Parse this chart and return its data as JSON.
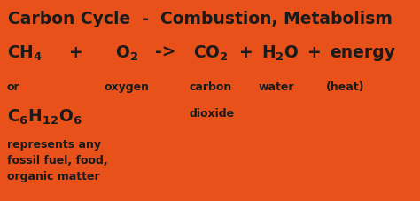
{
  "background_color": "#E8511A",
  "title": "Carbon Cycle  -  Combustion, Metabolism",
  "text_color": "#1a1a1a",
  "fig_width": 4.74,
  "fig_height": 2.27,
  "dpi": 100,
  "title_fontsize": 13.5,
  "formula_fontsize": 13.5,
  "label_fontsize": 9.0,
  "small_fontsize": 9.0
}
